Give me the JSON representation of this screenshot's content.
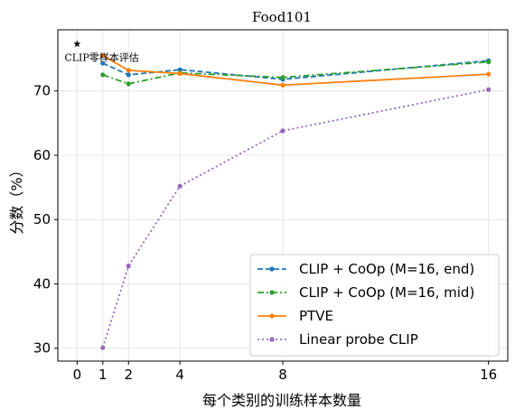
{
  "chart_data": {
    "type": "line",
    "title": "Food101",
    "xlabel": "每个类别的训练样本数量",
    "ylabel": "分数（%）",
    "xlim": [
      -0.75,
      16.75
    ],
    "ylim": [
      28,
      79.5
    ],
    "x_ticks": [
      0,
      1,
      2,
      4,
      8,
      16
    ],
    "y_ticks": [
      30,
      40,
      50,
      60,
      70
    ],
    "grid": true,
    "legend_position": "lower-right",
    "annotation": {
      "text": "CLIP零样本评估",
      "marker": "star",
      "x": 0,
      "y": 77.3,
      "color": "#000000"
    },
    "series": [
      {
        "name": "CLIP + CoOp (M=16, end)",
        "color": "#1f77b4",
        "dash": "dashed",
        "x": [
          1,
          2,
          4,
          8,
          16
        ],
        "y": [
          74.3,
          72.5,
          73.3,
          71.8,
          74.7
        ]
      },
      {
        "name": "CLIP + CoOp (M=16, mid)",
        "color": "#2ca02c",
        "dash": "dashdot",
        "x": [
          1,
          2,
          4,
          8,
          16
        ],
        "y": [
          72.5,
          71.1,
          72.8,
          72.1,
          74.5
        ]
      },
      {
        "name": "PTVE",
        "color": "#ff7f0e",
        "dash": "solid",
        "x": [
          1,
          2,
          4,
          8,
          16
        ],
        "y": [
          75.5,
          73.2,
          72.7,
          70.9,
          72.6
        ]
      },
      {
        "name": "Linear probe CLIP",
        "color": "#9467bd",
        "dash": "dotted",
        "x": [
          1,
          2,
          4,
          8,
          16
        ],
        "y": [
          30.1,
          42.8,
          55.2,
          63.8,
          70.2
        ]
      }
    ]
  }
}
